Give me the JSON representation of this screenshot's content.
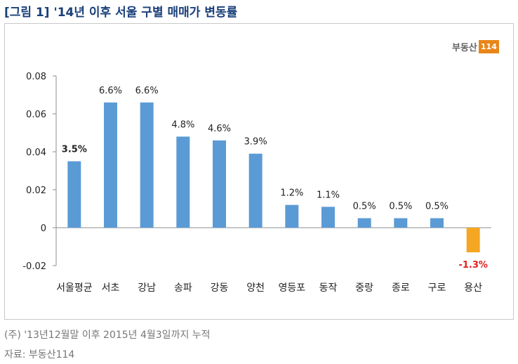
{
  "figure": {
    "title": "[그림 1] '14년 이후 서울 구별 매매가 변동률",
    "logo_text": "부동산",
    "logo_badge": "114",
    "note": "(주) '13년12월말 이후 2015년 4월3일까지 누적",
    "source": "자료: 부동산114"
  },
  "chart_data": {
    "type": "bar",
    "title": "",
    "xlabel": "",
    "ylabel": "",
    "categories": [
      "서울평균",
      "서초",
      "강남",
      "송파",
      "강동",
      "양천",
      "영등포",
      "동작",
      "중랑",
      "종로",
      "구로",
      "용산"
    ],
    "values": [
      0.035,
      0.066,
      0.066,
      0.048,
      0.046,
      0.039,
      0.012,
      0.011,
      0.005,
      0.005,
      0.005,
      -0.013
    ],
    "data_labels": [
      "3.5%",
      "6.6%",
      "6.6%",
      "4.8%",
      "4.6%",
      "3.9%",
      "1.2%",
      "1.1%",
      "0.5%",
      "0.5%",
      "0.5%",
      "-1.3%"
    ],
    "ylim": [
      -0.02,
      0.08
    ],
    "yticks": [
      -0.02,
      0,
      0.02,
      0.04,
      0.06,
      0.08
    ],
    "ytick_labels": [
      "-0.02",
      "0",
      "0.02",
      "0.04",
      "0.06",
      "0.08"
    ],
    "bar_color": "#5b9bd5",
    "negative_bar_color": "#f5a623",
    "negative_label_color": "#e02020",
    "grid": false,
    "legend": false
  }
}
